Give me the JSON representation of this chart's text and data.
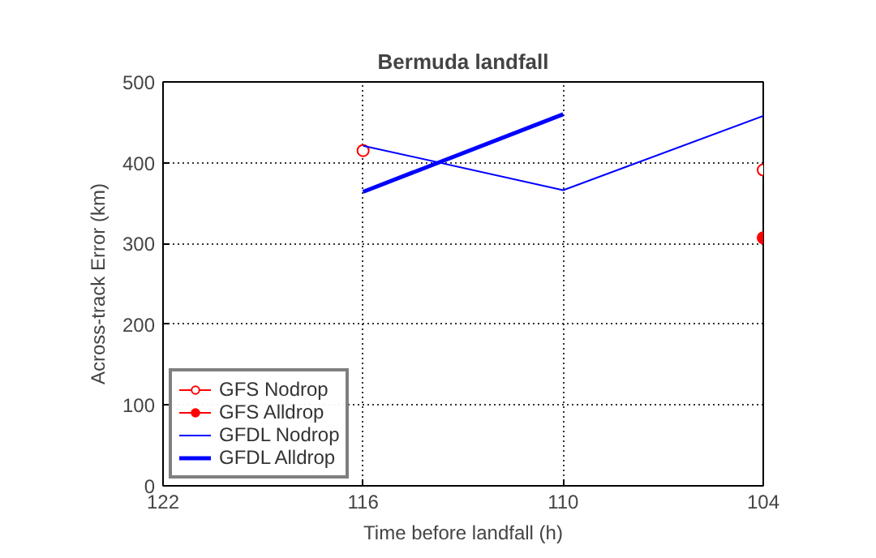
{
  "chart_data": {
    "type": "line",
    "title": "Bermuda landfall",
    "xlabel": "Time before landfall (h)",
    "ylabel": "Across-track Error (km)",
    "x": [
      116,
      110,
      104
    ],
    "series": [
      {
        "name": "GFS Nodrop",
        "color": "#ff0000",
        "values": [
          415,
          null,
          391
        ],
        "marker": "circle"
      },
      {
        "name": "GFS Alldrop",
        "color": "#ff0000",
        "values": [
          null,
          null,
          307
        ],
        "marker": "circle"
      },
      {
        "name": "GFDL Nodrop",
        "color": "#0000ff",
        "values": [
          421,
          366,
          458
        ],
        "marker": "none"
      },
      {
        "name": "GFDL Alldrop",
        "color": "#0000ff",
        "values": [
          364,
          460,
          null
        ],
        "marker": "none"
      }
    ],
    "xlim": [
      122,
      104
    ],
    "xticks": [
      122,
      116,
      110,
      104
    ],
    "ylim": [
      0,
      500
    ],
    "yticks": [
      0,
      100,
      200,
      300,
      400,
      500
    ],
    "grid": true,
    "legend": "bottom left",
    "line_style": "solid"
  }
}
